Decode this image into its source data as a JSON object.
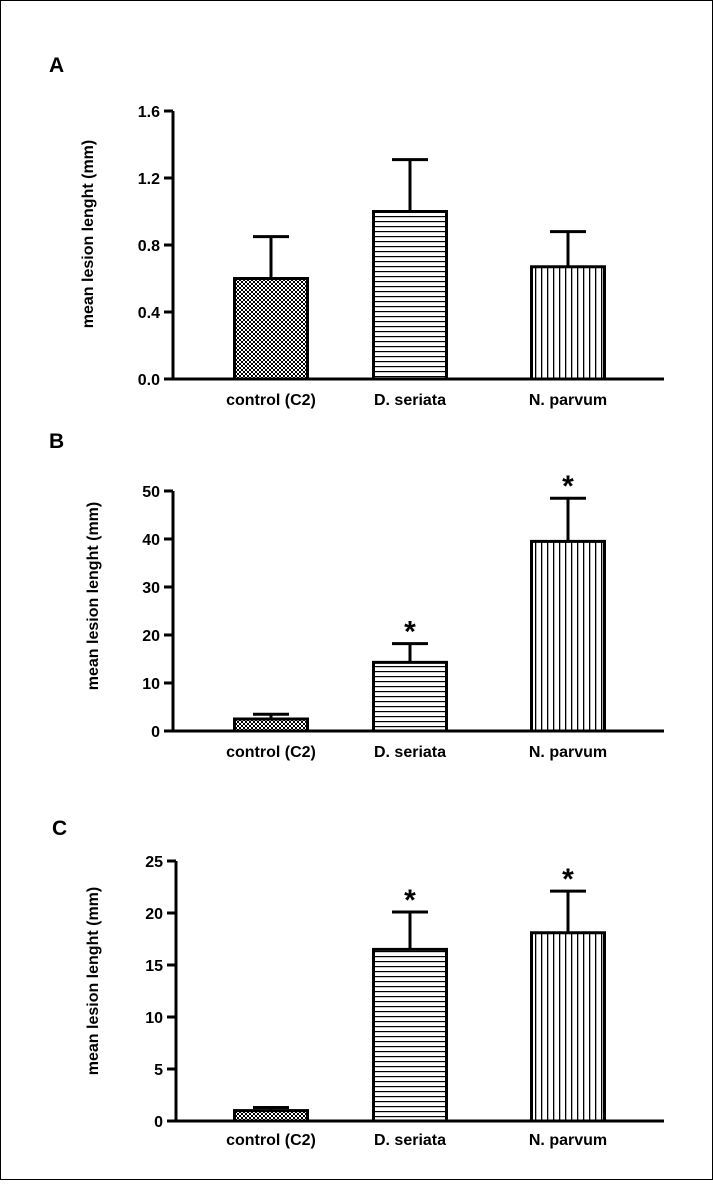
{
  "chart_data": [
    {
      "type": "bar",
      "panel": "A",
      "categories": [
        "control (C2)",
        "D. seriata",
        "N. parvum"
      ],
      "values": [
        0.6,
        1.0,
        0.67
      ],
      "errors": [
        0.25,
        0.31,
        0.21
      ],
      "significance": [
        "",
        "",
        ""
      ],
      "ylabel": "mean lesion lenght (mm)",
      "xlabel": "",
      "ylim": [
        0,
        1.6
      ],
      "yticks": [
        0.0,
        0.4,
        0.8,
        1.2,
        1.6
      ],
      "ytick_labels": [
        "0.0",
        "0.4",
        "0.8",
        "1.2",
        "1.6"
      ],
      "patterns": [
        "dots",
        "horizontal",
        "vertical"
      ],
      "grid": false,
      "legend": "none"
    },
    {
      "type": "bar",
      "panel": "B",
      "categories": [
        "control (C2)",
        "D. seriata",
        "N. parvum"
      ],
      "values": [
        2.5,
        14.3,
        39.5
      ],
      "errors": [
        1.0,
        3.9,
        9.0
      ],
      "significance": [
        "",
        "*",
        "*"
      ],
      "ylabel": "mean lesion lenght (mm)",
      "xlabel": "",
      "ylim": [
        0,
        50
      ],
      "yticks": [
        0,
        10,
        20,
        30,
        40,
        50
      ],
      "ytick_labels": [
        "0",
        "10",
        "20",
        "30",
        "40",
        "50"
      ],
      "patterns": [
        "dots",
        "horizontal",
        "vertical"
      ],
      "grid": false,
      "legend": "none"
    },
    {
      "type": "bar",
      "panel": "C",
      "categories": [
        "control (C2)",
        "D. seriata",
        "N. parvum"
      ],
      "values": [
        1.0,
        16.5,
        18.1
      ],
      "errors": [
        0.3,
        3.6,
        4.0
      ],
      "significance": [
        "",
        "*",
        "*"
      ],
      "ylabel": "mean lesion lenght (mm)",
      "xlabel": "",
      "ylim": [
        0,
        25
      ],
      "yticks": [
        0,
        5,
        10,
        15,
        20,
        25
      ],
      "ytick_labels": [
        "0",
        "5",
        "10",
        "15",
        "20",
        "25"
      ],
      "patterns": [
        "dots",
        "horizontal",
        "vertical"
      ],
      "grid": false,
      "legend": "none"
    }
  ]
}
